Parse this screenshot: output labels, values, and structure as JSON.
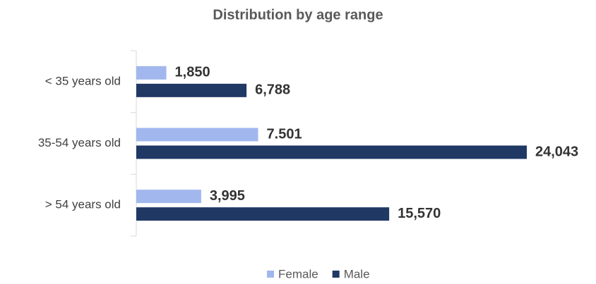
{
  "chart_data": {
    "type": "bar",
    "orientation": "horizontal",
    "title": "Distribution by age range",
    "categories": [
      "< 35 years old",
      "35-54 years old",
      "> 54 years old"
    ],
    "series": [
      {
        "name": "Female",
        "color": "#a1b7ee",
        "values": [
          1850,
          7501,
          3995
        ],
        "value_labels": [
          "1,850",
          "7.501",
          "3,995"
        ]
      },
      {
        "name": "Male",
        "color": "#203864",
        "values": [
          6788,
          24043,
          15570
        ],
        "value_labels": [
          "6,788",
          "24,043",
          "15,570"
        ]
      }
    ],
    "legend": "bottom"
  }
}
